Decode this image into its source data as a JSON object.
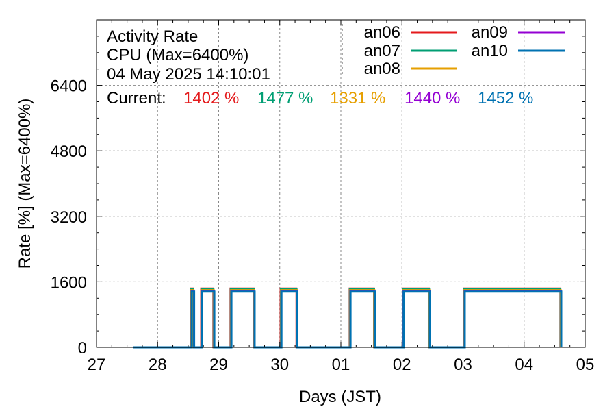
{
  "chart_data": {
    "type": "line",
    "title_lines": [
      "Activity Rate",
      "CPU (Max=6400%)",
      "04 May 2025 14:10:01"
    ],
    "current_label": "Current:",
    "xlabel": "Days (JST)",
    "ylabel": "Rate [%]  (Max=6400%)",
    "xlim": [
      0,
      8
    ],
    "ylim": [
      0,
      8000
    ],
    "x_ticks": [
      {
        "x": 0,
        "label": "27"
      },
      {
        "x": 1,
        "label": "28"
      },
      {
        "x": 2,
        "label": "29"
      },
      {
        "x": 3,
        "label": "30"
      },
      {
        "x": 4,
        "label": "01"
      },
      {
        "x": 5,
        "label": "02"
      },
      {
        "x": 6,
        "label": "03"
      },
      {
        "x": 7,
        "label": "04"
      },
      {
        "x": 8,
        "label": "05"
      }
    ],
    "y_ticks": [
      0,
      1600,
      3200,
      4800,
      6400
    ],
    "grid": true,
    "legend_position": "top-right",
    "series": [
      {
        "name": "an06",
        "color": "#e41a1c",
        "current": "1402 %"
      },
      {
        "name": "an07",
        "color": "#009e73",
        "current": "1477 %"
      },
      {
        "name": "an08",
        "color": "#e69f00",
        "current": "1331 %"
      },
      {
        "name": "an09",
        "color": "#9400d3",
        "current": "1440 %"
      },
      {
        "name": "an10",
        "color": "#0072b2",
        "current": "1452 %"
      }
    ],
    "activity_level": 1400,
    "idle_level": 0,
    "start_x": 0.6,
    "end_x": 7.6,
    "active_intervals": [
      [
        1.55,
        1.59
      ],
      [
        1.72,
        1.92
      ],
      [
        2.2,
        2.58
      ],
      [
        3.02,
        3.28
      ],
      [
        4.15,
        4.55
      ],
      [
        5.02,
        5.45
      ],
      [
        6.02,
        7.6
      ]
    ]
  }
}
